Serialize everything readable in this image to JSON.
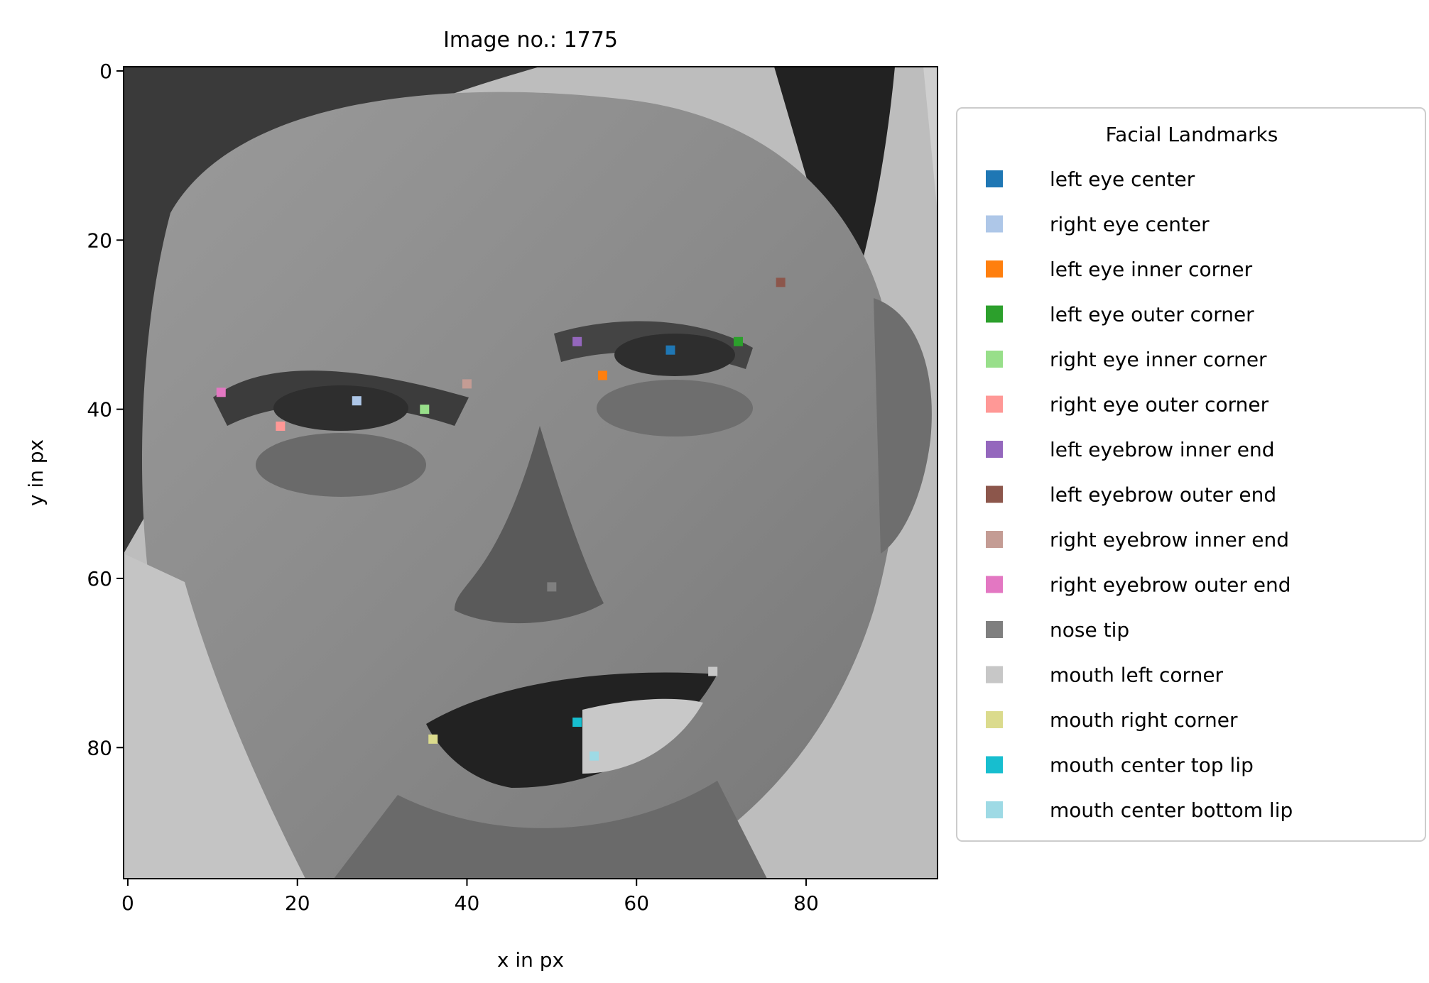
{
  "chart_data": {
    "type": "scatter",
    "title": "Image no.: 1775",
    "xlabel": "x in px",
    "ylabel": "y in px",
    "xlim": [
      -0.5,
      95.5
    ],
    "ylim": [
      95.5,
      -0.5
    ],
    "y_axis_inverted": true,
    "x_ticks": [
      0,
      20,
      40,
      60,
      80
    ],
    "y_ticks": [
      0,
      20,
      40,
      60,
      80
    ],
    "x_tick_labels": [
      "0",
      "20",
      "40",
      "60",
      "80"
    ],
    "y_tick_labels": [
      "0",
      "20",
      "40",
      "60",
      "80"
    ],
    "background": "96x96 grayscale face photograph",
    "grid": false,
    "legend": {
      "title": "Facial Landmarks",
      "placement": "outside-right"
    },
    "series": [
      {
        "name": "left eye center",
        "color": "#1f77b4",
        "x": 64,
        "y": 33
      },
      {
        "name": "right eye center",
        "color": "#aec7e8",
        "x": 27,
        "y": 39
      },
      {
        "name": "left eye inner corner",
        "color": "#ff7f0e",
        "x": 56,
        "y": 36
      },
      {
        "name": "left eye outer corner",
        "color": "#2ca02c",
        "x": 72,
        "y": 32
      },
      {
        "name": "right eye inner corner",
        "color": "#98df8a",
        "x": 35,
        "y": 40
      },
      {
        "name": "right eye outer corner",
        "color": "#ff9896",
        "x": 18,
        "y": 42
      },
      {
        "name": "left eyebrow inner end",
        "color": "#9467bd",
        "x": 53,
        "y": 32
      },
      {
        "name": "left eyebrow outer end",
        "color": "#8c564b",
        "x": 77,
        "y": 25
      },
      {
        "name": "right eyebrow inner end",
        "color": "#c49c94",
        "x": 40,
        "y": 37
      },
      {
        "name": "right eyebrow outer end",
        "color": "#e377c2",
        "x": 11,
        "y": 38
      },
      {
        "name": "nose tip",
        "color": "#7f7f7f",
        "x": 50,
        "y": 61
      },
      {
        "name": "mouth left corner",
        "color": "#c7c7c7",
        "x": 69,
        "y": 71
      },
      {
        "name": "mouth right corner",
        "color": "#dbdb8d",
        "x": 36,
        "y": 79
      },
      {
        "name": "mouth center top lip",
        "color": "#17becf",
        "x": 53,
        "y": 77
      },
      {
        "name": "mouth center bottom lip",
        "color": "#9edae5",
        "x": 55,
        "y": 81
      }
    ]
  }
}
